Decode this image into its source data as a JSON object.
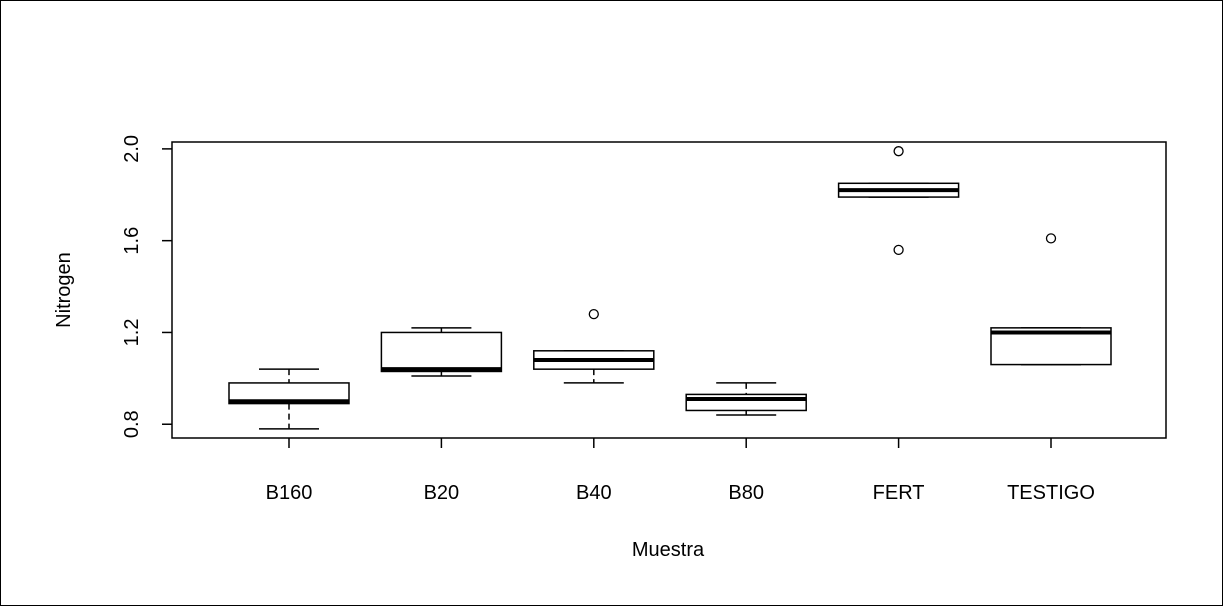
{
  "chart_data": {
    "type": "boxplot",
    "title": "",
    "xlabel": "Muestra",
    "ylabel": "Nitrogen",
    "ylim": [
      0.74,
      2.03
    ],
    "yticks": [
      "0.8",
      "1.2",
      "1.6",
      "2.0"
    ],
    "categories": [
      "B160",
      "B20",
      "B40",
      "B80",
      "FERT",
      "TESTIGO"
    ],
    "boxes": [
      {
        "category": "B160",
        "whisker_low": 0.78,
        "q1": 0.89,
        "median": 0.9,
        "q3": 0.98,
        "whisker_high": 1.04,
        "outliers": []
      },
      {
        "category": "B20",
        "whisker_low": 1.01,
        "q1": 1.03,
        "median": 1.04,
        "q3": 1.2,
        "whisker_high": 1.22,
        "outliers": []
      },
      {
        "category": "B40",
        "whisker_low": 0.98,
        "q1": 1.04,
        "median": 1.08,
        "q3": 1.12,
        "whisker_high": 1.12,
        "outliers": [
          1.28
        ]
      },
      {
        "category": "B80",
        "whisker_low": 0.84,
        "q1": 0.86,
        "median": 0.91,
        "q3": 0.93,
        "whisker_high": 0.98,
        "outliers": []
      },
      {
        "category": "FERT",
        "whisker_low": 1.79,
        "q1": 1.79,
        "median": 1.82,
        "q3": 1.85,
        "whisker_high": 1.85,
        "outliers": [
          1.99,
          1.56
        ]
      },
      {
        "category": "TESTIGO",
        "whisker_low": 1.06,
        "q1": 1.06,
        "median": 1.2,
        "q3": 1.22,
        "whisker_high": 1.22,
        "outliers": [
          1.61
        ]
      }
    ],
    "grid": false,
    "legend": "none"
  }
}
